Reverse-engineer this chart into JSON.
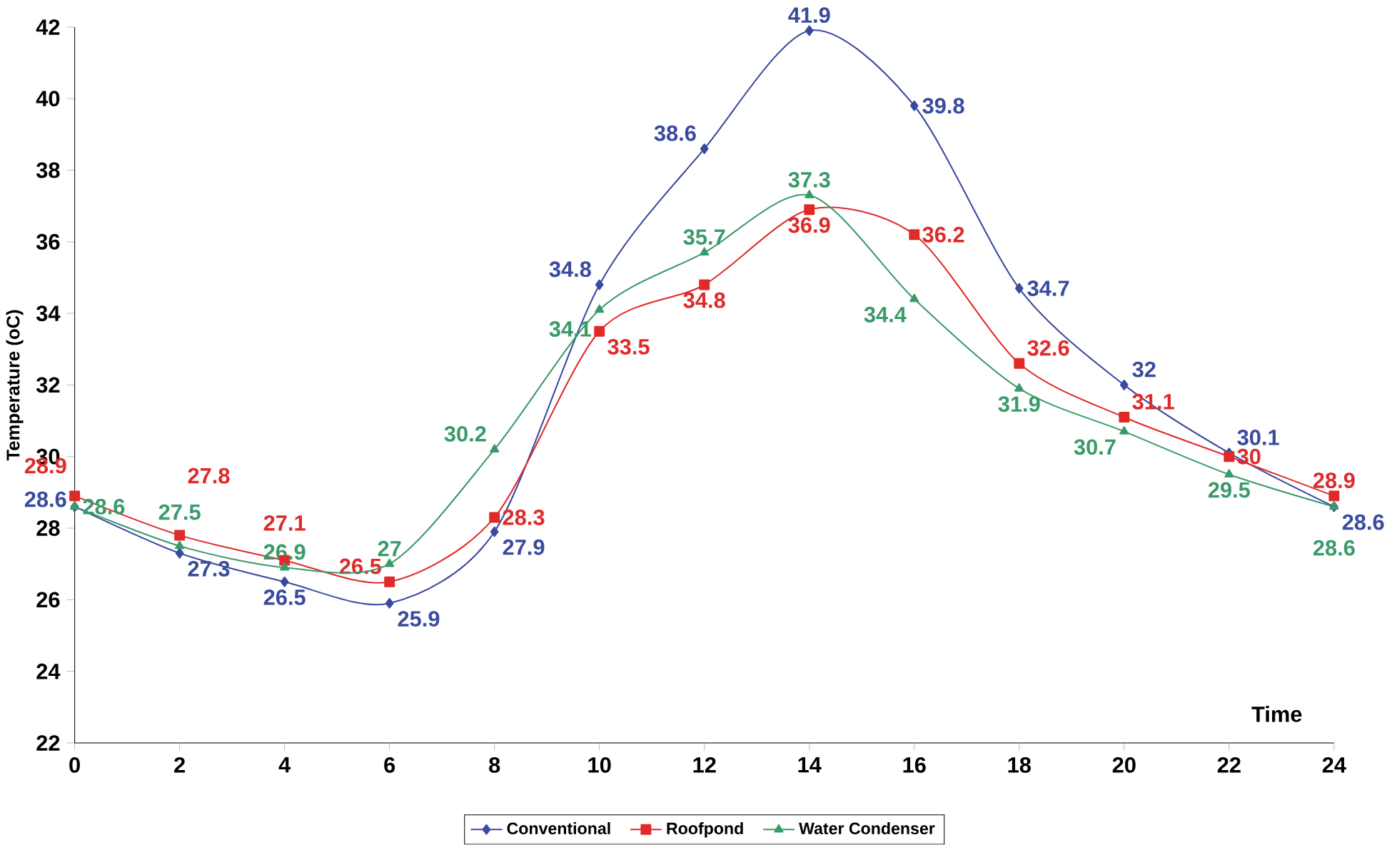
{
  "chart_data": {
    "type": "line",
    "xlabel": "Time",
    "ylabel": "Temperature (oC)",
    "x": [
      0,
      2,
      4,
      6,
      8,
      10,
      12,
      14,
      16,
      18,
      20,
      22,
      24
    ],
    "xlim": [
      0,
      24
    ],
    "xticks": [
      0,
      2,
      4,
      6,
      8,
      10,
      12,
      14,
      16,
      18,
      20,
      22,
      24
    ],
    "ylim": [
      22,
      42
    ],
    "yticks": [
      22,
      24,
      26,
      28,
      30,
      32,
      34,
      36,
      38,
      40,
      42
    ],
    "grid": false,
    "legend": "bottom",
    "data_labels": true,
    "series": [
      {
        "name": "Conventional",
        "color": "#3a4a9e",
        "marker": "diamond",
        "values": [
          28.6,
          27.3,
          26.5,
          25.9,
          27.9,
          34.8,
          38.6,
          41.9,
          39.8,
          34.7,
          32,
          30.1,
          28.6
        ]
      },
      {
        "name": "Roofpond",
        "color": "#e02a2a",
        "marker": "square",
        "values": [
          28.9,
          27.8,
          27.1,
          26.5,
          28.3,
          33.5,
          34.8,
          36.9,
          36.2,
          32.6,
          31.1,
          30,
          28.9
        ]
      },
      {
        "name": "Water Condenser",
        "color": "#3a9a6a",
        "marker": "triangle",
        "values": [
          28.6,
          27.5,
          26.9,
          27,
          30.2,
          34.1,
          35.7,
          37.3,
          34.4,
          31.9,
          30.7,
          29.5,
          28.6
        ]
      }
    ]
  }
}
